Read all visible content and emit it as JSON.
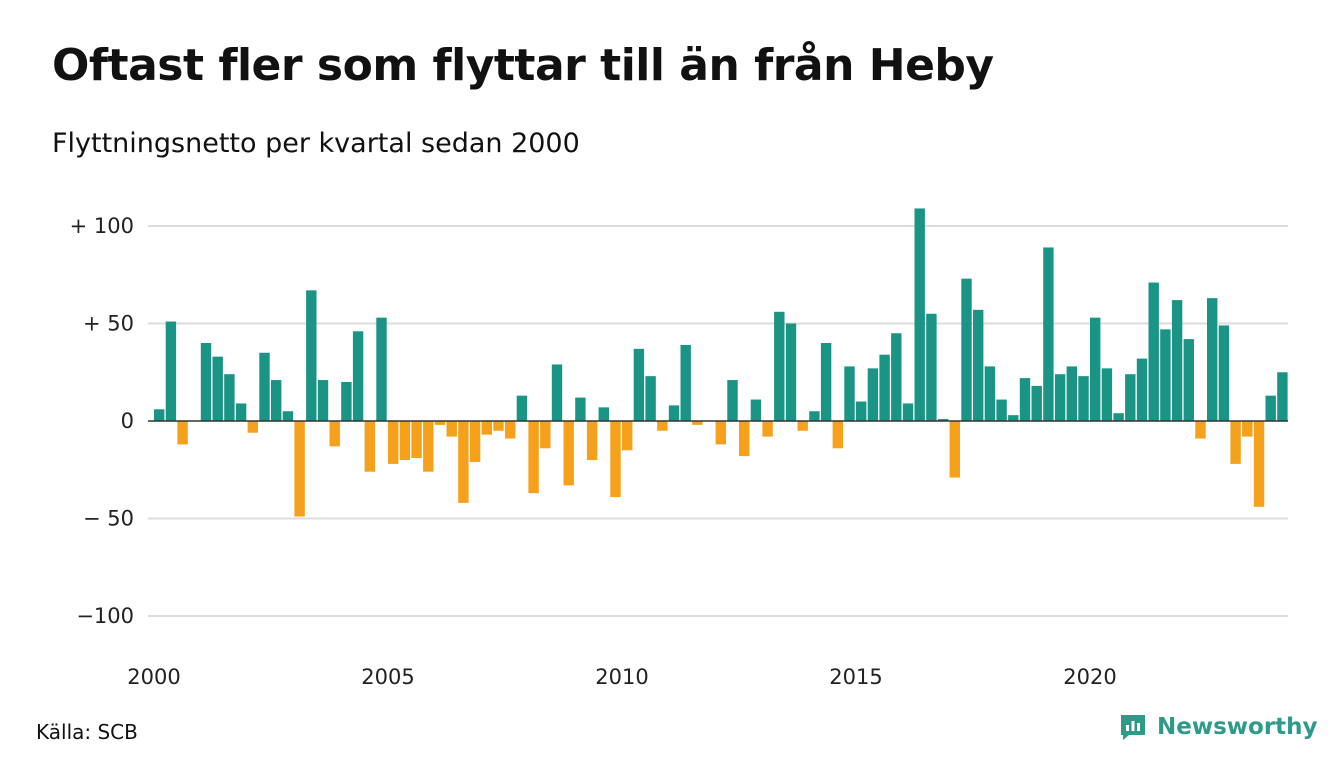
{
  "header": {
    "title": "Oftast fler som flyttar till än från Heby",
    "subtitle": "Flyttningsnetto per kvartal sedan 2000"
  },
  "footer": {
    "source": "Källa: SCB",
    "brand_name": "Newsworthy",
    "brand_icon": "chart-bubble-icon"
  },
  "colors": {
    "positive": "#1a9485",
    "negative": "#f5a11c",
    "grid": "#dddddd",
    "brand": "#2e9a8a"
  },
  "chart_data": {
    "type": "bar",
    "title": "",
    "xlabel": "",
    "ylabel": "",
    "ylim": [
      -100,
      110
    ],
    "grid": true,
    "y_ticks": [
      {
        "value": 100,
        "label": "+ 100"
      },
      {
        "value": 50,
        "label": "+  50"
      },
      {
        "value": 0,
        "label": "0"
      },
      {
        "value": -50,
        "label": "− 50"
      },
      {
        "value": -100,
        "label": "−100"
      }
    ],
    "x_ticks": [
      "2000",
      "2005",
      "2010",
      "2015",
      "2020"
    ],
    "start": {
      "year": 2000,
      "quarter": 1
    },
    "values": [
      6,
      51,
      -12,
      0,
      40,
      33,
      24,
      9,
      -6,
      35,
      21,
      5,
      -49,
      67,
      21,
      -13,
      20,
      46,
      -26,
      53,
      -22,
      -20,
      -19,
      -26,
      -2,
      -8,
      -42,
      -21,
      -7,
      -5,
      -9,
      13,
      -37,
      -14,
      29,
      -33,
      12,
      -20,
      7,
      -39,
      -15,
      37,
      23,
      -5,
      8,
      39,
      -2,
      0,
      -12,
      21,
      -18,
      11,
      -8,
      56,
      50,
      -5,
      5,
      40,
      -14,
      28,
      10,
      27,
      34,
      45,
      9,
      109,
      55,
      1,
      -29,
      73,
      57,
      28,
      11,
      3,
      22,
      18,
      89,
      24,
      28,
      23,
      53,
      27,
      4,
      24,
      32,
      71,
      47,
      62,
      42,
      -9,
      63,
      49,
      -22,
      -8,
      -44,
      13,
      25
    ]
  }
}
